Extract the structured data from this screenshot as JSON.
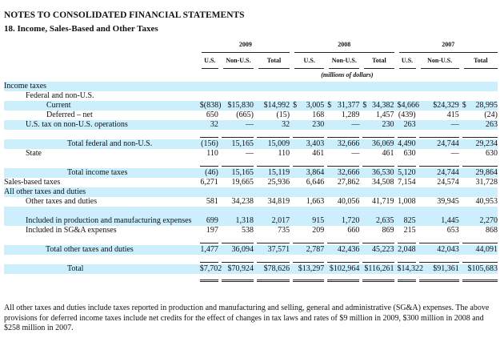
{
  "header": {
    "title": "NOTES TO CONSOLIDATED FINANCIAL STATEMENTS",
    "subtitle": "18. Income, Sales-Based and Other Taxes"
  },
  "table": {
    "years": [
      "2009",
      "2008",
      "2007"
    ],
    "columns": [
      "U.S.",
      "Non-U.S.",
      "Total",
      "U.S.",
      "Non-U.S.",
      "Total",
      "U.S.",
      "Non-U.S.",
      "Total"
    ],
    "units": "(millions of dollars)",
    "rows": [
      {
        "label": "Income taxes",
        "indent": 0,
        "stripe": true,
        "values": []
      },
      {
        "label": "Federal and non-U.S.",
        "indent": 1,
        "stripe": false,
        "values": []
      },
      {
        "label": "Current",
        "indent": 2,
        "stripe": true,
        "values": [
          "$ (838)",
          "$15,830",
          "$14,992",
          "$ 3,005",
          "$ 31,377",
          "$ 34,382",
          "$ 4,666",
          "$24,329",
          "$ 28,995"
        ]
      },
      {
        "label": "Deferred – net",
        "indent": 2,
        "stripe": false,
        "values": [
          "650",
          "(665)",
          "(15)",
          "168",
          "1,289",
          "1,457",
          "(439)",
          "415",
          "(24)"
        ]
      },
      {
        "label": "U.S. tax on non-U.S. operations",
        "indent": 1,
        "stripe": true,
        "values": [
          "32",
          "—",
          "32",
          "230",
          "—",
          "230",
          "263",
          "—",
          "263"
        ]
      },
      {
        "separator": "single"
      },
      {
        "label": "Total federal and non-U.S.",
        "indent": 3,
        "stripe": true,
        "values": [
          "(156)",
          "15,165",
          "15,009",
          "3,403",
          "32,666",
          "36,069",
          "4,490",
          "24,744",
          "29,234"
        ]
      },
      {
        "label": "State",
        "indent": 1,
        "stripe": false,
        "values": [
          "110",
          "—",
          "110",
          "461",
          "—",
          "461",
          "630",
          "—",
          "630"
        ]
      },
      {
        "separator": "single"
      },
      {
        "label": "Total income taxes",
        "indent": 3,
        "stripe": true,
        "values": [
          "(46)",
          "15,165",
          "15,119",
          "3,864",
          "32,666",
          "36,530",
          "5,120",
          "24,744",
          "29,864"
        ]
      },
      {
        "label": "Sales-based taxes",
        "indent": 0,
        "stripe": false,
        "values": [
          "6,271",
          "19,665",
          "25,936",
          "6,646",
          "27,862",
          "34,508",
          "7,154",
          "24,574",
          "31,728"
        ]
      },
      {
        "label": "All other taxes and duties",
        "indent": 0,
        "stripe": true,
        "values": []
      },
      {
        "label": "Other taxes and duties",
        "indent": 1,
        "stripe": false,
        "values": [
          "581",
          "34,238",
          "34,819",
          "1,663",
          "40,056",
          "41,719",
          "1,008",
          "39,945",
          "40,953"
        ]
      },
      {
        "label": "Included in production and manufacturing expenses",
        "indent": 1,
        "stripe": true,
        "tall": true,
        "values": [
          "699",
          "1,318",
          "2,017",
          "915",
          "1,720",
          "2,635",
          "825",
          "1,445",
          "2,270"
        ]
      },
      {
        "label": "Included in SG&A expenses",
        "indent": 1,
        "stripe": false,
        "values": [
          "197",
          "538",
          "735",
          "209",
          "660",
          "869",
          "215",
          "653",
          "868"
        ]
      },
      {
        "separator": "single"
      },
      {
        "label": "Total other taxes and duties",
        "indent": 25,
        "stripe": true,
        "values": [
          "1,477",
          "36,094",
          "37,571",
          "2,787",
          "42,436",
          "45,223",
          "2,048",
          "42,043",
          "44,091"
        ]
      },
      {
        "separator": "single"
      },
      {
        "label": "Total",
        "indent": 3,
        "stripe": true,
        "values": [
          "$7,702",
          "$70,924",
          "$78,626",
          "$13,297",
          "$102,964",
          "$116,261",
          "$14,322",
          "$91,361",
          "$105,683"
        ]
      },
      {
        "separator": "double"
      }
    ]
  },
  "footnote": "All other taxes and duties include taxes reported in production and manufacturing and selling, general and administrative (SG&A) expenses. The above provisions for deferred income taxes include net credits for the effect of changes in tax laws and rates of $9 million in 2009, $300 million in 2008 and $258 million in 2007.",
  "colors": {
    "stripe": "#cdeefc",
    "text": "#111111"
  }
}
